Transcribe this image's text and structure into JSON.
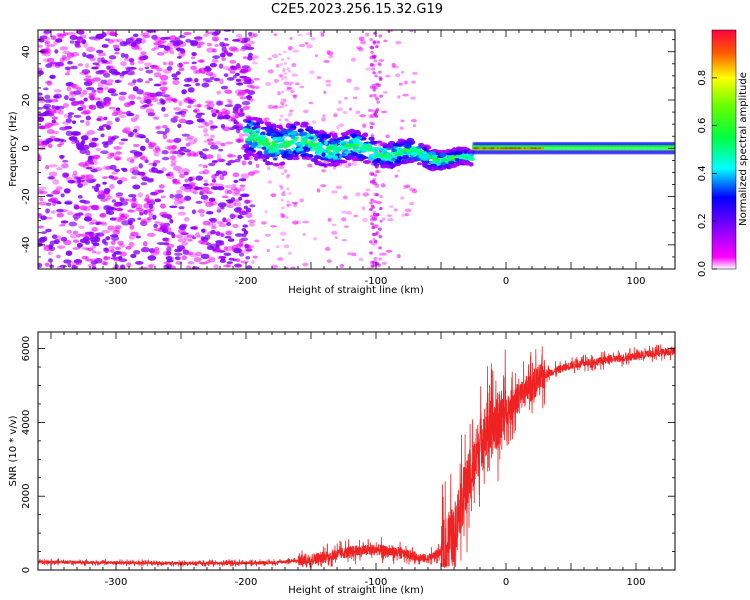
{
  "title": "C2E5.2023.256.15.32.G19",
  "chart_data": [
    {
      "type": "heatmap",
      "xlabel": "Height of straight line (km)",
      "ylabel": "Frequency (Hz)",
      "xlim": [
        -360,
        130
      ],
      "ylim": [
        -50,
        49
      ],
      "xticks": [
        -300,
        -200,
        -100,
        0,
        100
      ],
      "yticks": [
        -40,
        -20,
        0,
        20,
        40
      ],
      "colorbar": {
        "label": "Normalized spectral amplitude",
        "range": [
          0,
          1
        ],
        "ticks": [
          "0.0",
          "0.2",
          "0.4",
          "0.6",
          "0.8"
        ],
        "colormap": "rainbow"
      },
      "regions": [
        {
          "x": [
            -360,
            -200
          ],
          "freq": [
            -50,
            49
          ],
          "level": 0.15,
          "description_free": true
        },
        {
          "x": [
            -200,
            -130
          ],
          "freq": [
            -8,
            10
          ],
          "level": 0.4
        },
        {
          "x": [
            -130,
            -60
          ],
          "freq": [
            -8,
            6
          ],
          "level": 0.45
        },
        {
          "x": [
            -60,
            -25
          ],
          "freq": [
            -4,
            4
          ],
          "level": 0.55
        },
        {
          "x": [
            -25,
            130
          ],
          "freq": [
            -2,
            2
          ],
          "level": 0.7
        }
      ],
      "grid": false
    },
    {
      "type": "line",
      "xlabel": "Height of straight line (km)",
      "ylabel": "SNR (10 * v/v)",
      "xlim": [
        -360,
        130
      ],
      "ylim": [
        0,
        6450
      ],
      "xticks": [
        -300,
        -200,
        -100,
        0,
        100
      ],
      "yticks": [
        0,
        2000,
        4000,
        6000
      ],
      "color": "#ee2222",
      "series": [
        {
          "x": [
            -360,
            -300,
            -250,
            -200,
            -180,
            -160,
            -140,
            -120,
            -100,
            -80,
            -60,
            -50,
            -40,
            -35,
            -30,
            -25,
            -20,
            -15,
            -10,
            -5,
            0,
            10,
            20,
            30,
            50,
            70,
            100,
            130
          ],
          "values": [
            220,
            200,
            180,
            190,
            200,
            250,
            350,
            500,
            550,
            450,
            300,
            500,
            1000,
            1800,
            2300,
            2800,
            3500,
            3800,
            3900,
            4100,
            4300,
            4700,
            5000,
            5300,
            5550,
            5650,
            5800,
            5950
          ]
        }
      ],
      "grid": false
    }
  ]
}
